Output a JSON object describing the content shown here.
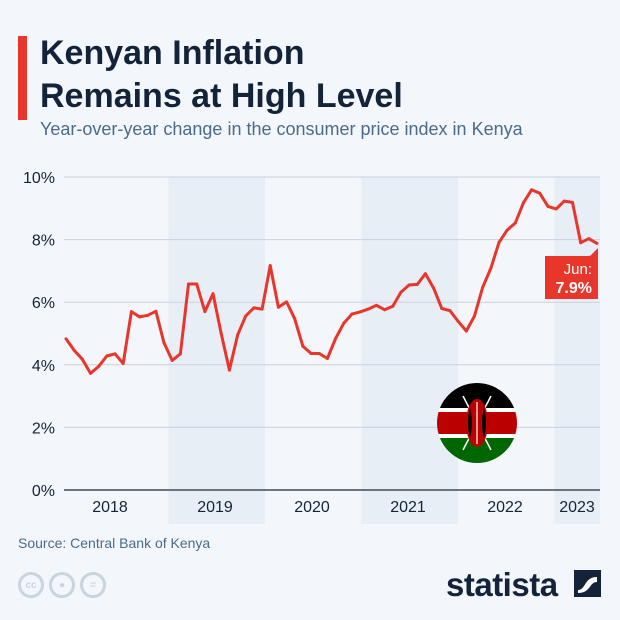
{
  "header": {
    "title_line1": "Kenyan Inflation",
    "title_line2": "Remains at High Level",
    "subtitle": "Year-over-year change in the consumer price index in Kenya"
  },
  "chart_data": {
    "type": "line",
    "title": "Kenyan Inflation Remains at High Level",
    "subtitle": "Year-over-year change in the consumer price index in Kenya",
    "xlabel": "",
    "ylabel": "",
    "ylim": [
      0,
      10
    ],
    "y_ticks": [
      "0%",
      "2%",
      "4%",
      "6%",
      "8%",
      "10%"
    ],
    "x_tick_labels": [
      "2018",
      "2019",
      "2020",
      "2021",
      "2022",
      "2023"
    ],
    "x_start": "2018-01",
    "x_end": "2023-06",
    "frequency": "monthly",
    "grid": true,
    "line_color": "#e8362a",
    "series": [
      {
        "values": [
          4.83,
          4.46,
          4.18,
          3.73,
          3.95,
          4.28,
          4.35,
          4.04,
          5.7,
          5.53,
          5.58,
          5.71,
          4.7,
          4.14,
          4.35,
          6.58,
          6.58,
          5.7,
          6.27,
          5.0,
          3.83,
          4.95,
          5.56,
          5.82,
          5.78,
          7.17,
          5.84,
          6.01,
          5.47,
          4.59,
          4.36,
          4.36,
          4.2,
          4.84,
          5.33,
          5.62,
          5.69,
          5.78,
          5.9,
          5.76,
          5.87,
          6.32,
          6.55,
          6.57,
          6.91,
          6.45,
          5.8,
          5.73,
          5.39,
          5.08,
          5.56,
          6.47,
          7.08,
          7.91,
          8.3,
          8.53,
          9.18,
          9.59,
          9.48,
          9.06,
          8.98,
          9.23,
          9.19,
          7.9,
          8.03,
          7.88
        ]
      }
    ],
    "annotation": {
      "label": "Jun:",
      "value": "7.9%"
    }
  },
  "footer": {
    "source": "Source: Central Bank of Kenya",
    "license_icons": [
      "cc-icon",
      "attribution-icon",
      "no-derivatives-icon"
    ],
    "cc_text": "cc",
    "brand": "statista"
  }
}
